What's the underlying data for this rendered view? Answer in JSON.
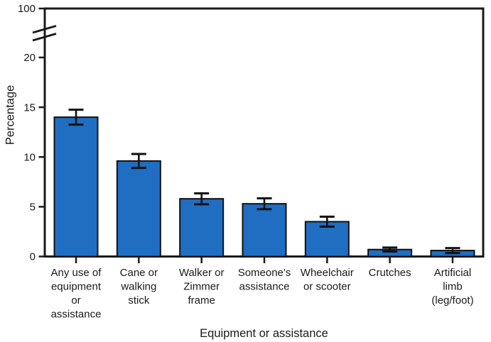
{
  "figure": {
    "background_color": "#ffffff",
    "axis_color": "#1a1a1a"
  },
  "chart_data": {
    "type": "bar",
    "title": "",
    "xlabel": "Equipment or assistance",
    "ylabel": "Percentage",
    "categories": [
      "Any use of equipment or assistance",
      "Cane or walking stick",
      "Walker or Zimmer frame",
      "Someone's assistance",
      "Wheelchair or scooter",
      "Crutches",
      "Artificial limb (leg/foot)"
    ],
    "category_label_lines": [
      [
        "Any use of",
        "equipment",
        "or",
        "assistance"
      ],
      [
        "Cane or",
        "walking",
        "stick"
      ],
      [
        "Walker or",
        "Zimmer",
        "frame"
      ],
      [
        "Someone's",
        "assistance"
      ],
      [
        "Wheelchair",
        "or scooter"
      ],
      [
        "Crutches"
      ],
      [
        "Artificial",
        "limb",
        "(leg/foot)"
      ]
    ],
    "values": [
      14.0,
      9.6,
      5.8,
      5.3,
      3.5,
      0.7,
      0.6
    ],
    "error_margins": [
      0.75,
      0.7,
      0.55,
      0.55,
      0.5,
      0.2,
      0.25
    ],
    "y_axis": {
      "ticks": [
        0,
        5,
        10,
        15,
        20,
        100
      ],
      "tick_labels": [
        "0",
        "5",
        "10",
        "15",
        "20",
        "100"
      ],
      "break_between": [
        20,
        100
      ],
      "range_shown": [
        0,
        20
      ]
    },
    "grid": false,
    "legend": "none",
    "bar_color": "#1f6ec2",
    "bar_border_color": "#111111",
    "error_bar_color": "#111111"
  }
}
